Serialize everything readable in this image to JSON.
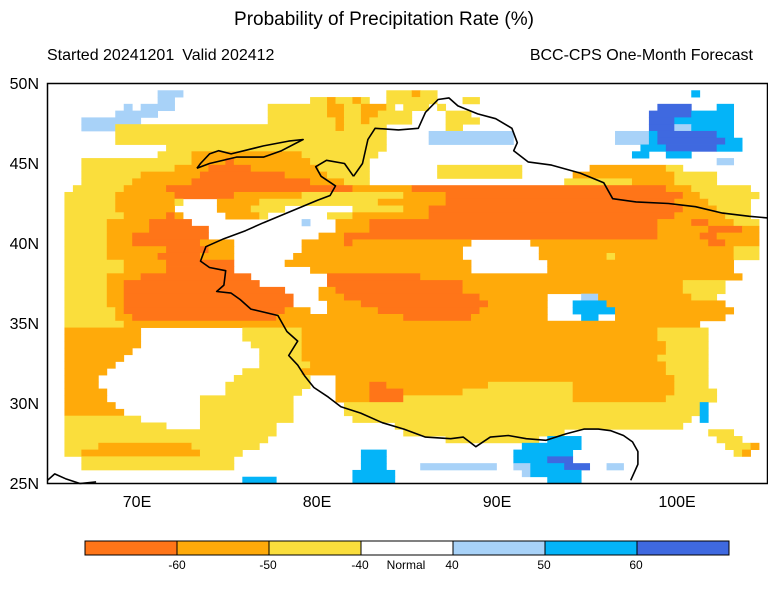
{
  "title": "Probability of Precipitation Rate (%)",
  "started": "Started 20241201",
  "valid": "Valid 202412",
  "source": "BCC-CPS One-Month Forecast",
  "lat_ticks": [
    "50N",
    "45N",
    "40N",
    "35N",
    "30N",
    "25N"
  ],
  "lon_ticks": [
    "70E",
    "80E",
    "90E",
    "100E"
  ],
  "colorbar": {
    "labels": [
      "-60",
      "-50",
      "-40",
      "Normal",
      "40",
      "50",
      "60"
    ],
    "colors": [
      "#ff7518",
      "#ffaa0a",
      "#fade3c",
      "#ffffff",
      "#a8d2f8",
      "#04b4f8",
      "#3f69e0"
    ]
  },
  "map": {
    "lon_range": [
      65,
      105
    ],
    "lat_range": [
      25,
      50
    ],
    "palette": {
      "W": "#ffffff",
      "Y": "#fade3c",
      "O": "#ffaa0a",
      "R": "#ff7518",
      "L": "#a8d2f8",
      "C": "#04b4f8",
      "D": "#3f69e0"
    },
    "grid": [
      "WWWWWWWWWWWWWWWWWWWWWWWWWWWWWWWWWWWWWWWWWWWWWWWWWWWWWWWWWWWWWWWWWWWWWWWWWWWWWWWWW",
      "WWWWWWWWWWWWWLLLWWWWWWWWWWWWWWWWWWWWWWWWYYYOYYWWWWWWWWWWWWWWWWWWWWWWWWWWWWWWCWWWW",
      "WWWWWWWWWWWWWLLWWWWWWWWWWWWWWWWYYOYYOYWWYYYYYYWWWYYWWWWWWWWWWWWWWWWWWWWWWWWWWWWWW",
      "WWWWWWWWWLWLLLLWWWWWWWWWWWYYYYYYYOOYYOOOYWYYYWYWWWWWWWWWWWWWWWWWWWWWWWWWDDDDWWWCCW",
      "WWWWWWWWLLLLLWWWWWWWWWWWWWYYYYYYYOOYYOOYYYYWWWWYYYWWWWWWWWWWWWWWWWWWWWWDDDDDCCCCCW",
      "WWWWLLLLLLLWWWWWWWWWWWWWWWYYYYYYYYOYYOYYYYYWWWWYYYYWWWWWWWWWWWWWWWWWWWWDDDCCCCCCCW",
      "WWWWLLLLYYYYYYYYYYYYYYYYYYYYYYYYYYOYYYYYWWWWWWWYYWWWWWWWWWWWWWWWWWWWWWWDDDLLCCCCCW",
      "WWWWWWWWYYYYYYYYYYYYYYYYYYYYYYYYYYYYYYYYWWWWWLLLLLLLLLLWWWWWWWWWWWWLLLLCDDDDDDDCCW",
      "WWWWWWWWYYYYYYYYYYYYYYYYYYYYYYYYYYYYYYYYWWWWWLLLLLLLLLLWWWWWWWWWWWWLLLLCDDDDDDDDCCW",
      "WWWWWWWWWWWWWWYYYYYYYYYYYYYYYYYYYYYYYYYYWWWWWWWWWWWWWWWWWWWWWWWWWWWWWWCCCDDDDDDCCCW",
      "WWWWWWWWWWWWWYYYYOOOOOOOOOOOOOYYYYYYYYYWWWWWWWWWWWWWWWWWWWWWWWWWWWWWWCCWWCCCWWWWW",
      "WWWWYYYYYYYYYYYYYOOOOROOOOOOOOOYYYYYYYWWWWWWWWWWWWWWWWWWWWWWWWWWWWWWWWWWWWWWWWWLLW",
      "WWWWYYYYYYYYYYYOOOORRRRROOOOOOOOYYYYYYWWWWWWWWYYYYYYYYYYWWWWWWWWOOOOOOOOOYYWWWWWWW",
      "WWWWYYYYYYYOOOOOOORRRRRRRRRROOOOOYYYYYWWWWWWWWYYYYYYYYYYWWWWWWOOOOOOOOOOOOYYYYYWWW",
      "WWWWYYYYYYOOOOOOORRRRRRRRRRRRRROOOOYYYWWWWWWWWWWWWWWWWWWWWWWWYYYYYYYYOOOOOYYYYYWWW",
      "WWWYYYYYYOOOOORRRRRRRRRRRRRRRRRRRRRROOOOOOORRRRRRRRRRRRRRRRRRRRRRRRRRRRRROOOYYYYYYY",
      "WWYYYYYYOOOOOOORRRRRRROOOOOOOOYYYYYYYYYYYYOOOOORRRRRRRRRRRRRRRRRRRRRRRRRRRROOYYYYYYY",
      "WWYYYYYYOOOOOOOYWWWWOOOOOYYYYYYYYYYYYYYOOOOOOOORRRRRRRRRRRRRRRRRRRRRRRRRRROOOOYYYYY",
      "WWYYYYYYOOOOOOOWWWWWOOOOYYYYWWWWWWWWYYYYYYOOORRRRRRRRRRRRRRRRRRRRRRRRRRRRRROOOOYYYY",
      "WWYYYYYYYOOOOOROWWWWWOOOOYWWWWWWWYYYOOOOOOOOORRRRRRRRRRRRRRRRRRRRRRRRRRRRROOOOOOYYY",
      "WWYYYYYOOOOORRRRRWWWWWWWWWWWWWLWWWOOOORRRRRRRRRRRRRRRRRRRRRRRRRRRRRRRRRROOOORROOOYYY",
      "WWYYYYYOOOOORRRRRRRWWWWWWWWWWWWWWWOOOORRRRRRRRRRRRRRRRRRRRRRRRRRRRRRRRRROOOOOORRRROO",
      "WWYYYYYOOORRRRRRRRRWWWWWWWWWWWWWOOORRRRRRRRRRRRRRRRRRRRRRRRRRRRRRRRRRRRROOOOORROOOOO",
      "WWYYYYYOOORRRRRRRROOOOWWWWWWWWOOOOOROOOOOOOOOOOOOOWWWWWWWOOOOOOOOOOOOOOOOOOOOORROOOO",
      "WWYYYYYOOOOOOORRRRROOOWWWWWWWWOOOOOOOOOOOOOOOOOOOWWWWWWWWWOOOOOOOOOOOOOOOOOOOOOOOYYY",
      "WWYYYYYOOOOOORRRRROOOOWWWWWWWOOOOOOOOOOOOOOOOOOOOWWWWWWWWWOOOOOOOOYOOOOOOOOOOOOOOYYY",
      "WWYYYYYYYOOOOORRRRRRRRWWWWWWOOOOOOOOOOOOOOOOOOOOOOWWWWWWWWWOOOOOOOOOOOOOOOOOOOOOOWW",
      "WWYYYYYYYOOOOORRRRRRRRWWWWWWWWWOOOOOOOOOOOOOOOOOOOWWWWWWWWWOOOOOOOOOOOOOOOOOOOOOOWW",
      "WWYYYYYOOOORRRRRRRRRRRRRWWWWWWWWWRRRRRRRRRRROOOOOOOOOOOOOOOOOOOOOOOOOOOOOOOOOOOOOOWW",
      "WWYYYYYOORRRRRRRRRRRRRRRRWWWWWWWWRRRRRRRRRRRRRRRROOOOOOOOOOOOOOOOOOOOOOOOOOYYYYYWWW",
      "WWYYYYYOORRRRRRRRRRRRRRRRRRRWWWWOORRRRRRRRRRRRRRROOOOOOOOOOOOOOOOOOOOOOOOOOYYYYYWWW",
      "WWYYYYYOORRRRRRRRRRRRRRRRRRRRWWWOOORRRRRRRRRRRRRRRROOOOOOOOWWWWLLOOOOOOOOOOOYYYWWWW",
      "WWYYYYYOORRRRRRRRRRRRRRRRRRRRWWWWOOOORRRRRRRRRRRRRRROOOOOOOWWWCCCCOOOOOOOOOOOOOOWWWW",
      "WWYYYYYYORRRRRRRRRRRRRRRRRRROOOWWOOOOOORRRRRRRRRRRROOOOOOOOWWWCCCCCOOOOOOOOOOOOOOWWWW",
      "WWYYYYYYOORRRRRRRRRRRRRRRRROOOOOOOOOOOOOOORRRRRRRROOOOOOOOOWWWWCCWWOOOOOOOOOOOOOWWWWW",
      "WWYYYYYYYOOOOOOOOOOOOOOOOOOOOOOOOOOOOOOOOOOOOOOOOOOOOOOOOOOOOOOOOOOOOOOOOOOOOWWWWW",
      "WWOOOOOOOOOWWWWWWWWWWWWYYYYYYYOOOOOOOOOOOOOOOOOOOOOOOOOOOOOOOOOOOOOOOOOOYYYYYYWWWWW",
      "WWOOOOOOOOOWWWWWWWWWWWWYYYYYYYOOOOOOOOOOOOOOOOOOOOOOOOOOOOOOOOOOOOOOOOOOYYYYYYWWWWW",
      "WWOOOOOOOOOWWWWWWWWWWWWWYYYYYYOOOOOOOOOOOOOOOOOOOOOOOOOOOOOOOOOOOOOOOOOOOYYYYYWWWWW",
      "WWOOOOOOOOWWWWWWWWWWWWWWWYYYYYOOOOOOOOOOOOOOOOOOOOOOOOOOOOOOOOOOOOOOOOOOOYYYYYWWWWW",
      "WWOOOOOOOWWWWWWWWWWWWWWWWYYYYYOOOOOOOOOOOOOOOOOOOOOOOOOOOOOOOOOOOOOOOOOOYYYYYYWWWWW",
      "WWOOOOOOWWWWWWWWWWWWWWWWWYYYYYYOOOOOOOOOOOOOOOOOOOOOOOOOOOOOOOOOOOOOOOOOOYYYYYWWWWW",
      "WWOOOOOWWWWWWWWWWWWWWWWYYYYYYYOOOOOOOOOOOOOOOOOOOOOOOOOOOOOOOOOOOOOOOOOOOYYYYYWWWWW",
      "WWOOOOWWWWWWWWWWWWWWWWYYYYYYYYYWWWOOOOOOOOOOOOOOOOOOOOOOOOOOOOOOOOOOOOOOOOYYYYWWWWW",
      "WWOOOOWWWWWWWWWWWWWWWYYYYYYYYYYWWWOOOORROOOOOOOOOOOOYYYYYYYYYYOOOOOOOOOOOOYYYYWWWWWW",
      "WWOOOOOWWWWWWWWWWWWWWYYYYYYYYYWWWWOOOORRRROOOOOOOYYYYYYYYYYYYYOOOOOOOOOOOOYYYYYWWWWW",
      "WWOOOOOWWWWWWWWWWWYYYYYYYYYYYWWWWWOOOORRRRYYYYYYYYYYYYYYYYYYYYOOOOOOOOOOOYYYYYYWWWWW",
      "WWOOOOOOWWWWWWWWWWYYYYYYYYYYYWWWWWWYYYYYYYYYYYYYYYYYYYYYYYYYYYYYYYYYYYYYYYYYYCWWWWW",
      "WWOOOOOOOWWWWWWWWWYYYYYYYYYYYWWWWWWYYYYYYYYYYYYYYYYYYYYYYYYYYYYYYYYYYYYYYYYYYCWWWWW",
      "WWYYYYYYYYYWWWWWWWYYYYYYYYYYYWWWWWWWYYYYYYYYYYYYYYYYYYYYYYYYYYYYYYYYYYYYYYYYWCWWWWW",
      "WWYYYYYYYYYYYYWWWWYYYYYYYYYWWWWWWWWWWWWWWYYYYYYYYYYYYYYYYYYYYYYYYYYYYYYYYYYWWWWWWWW",
      "WWYYYYYYYYYYYYYYYYYYYYYYYYYWWWWWWWWWWWWWWWYYYYYYYYYYYYYYYYYYYWWWWWWWWWWWWWWWWWYYYWWW",
      "WWYYYYYYYYYYYYYYYYYYYYYYYYWWWWWWWWWWWWWWWWWWWWWYYYYYYYYYYYWCCCCWWWWWWWWWWWWWWWWYYYWW",
      "WWYYYYOOOOOOOOOOOYYYYYYYYWWWWWWWWWWWWWWWWWWWWWWWWWWWWWWWCCCCCCCWWWWWWWWWWWWWWWWWYYYOW",
      "WWYYOOOOOOOOOOOOOOYYYYYWWWWWWWWWWWWWWCCCWWWWWWWWWWWWWWWCCCCCCCWWWWWWWWWWWWWWWWWWWYOW",
      "WWWWYYYYYYYYYYYYYYYYYYWWWWWWWWWWWWWWWCCCWWWWWWWWWWWWWWWCCCCDDDWWWWWWWWWWWWWWWWWWWWWW",
      "WWWWYYYYYYYYYYYYYYYYYYWWWWWWWWWWWWWWWCCCWWWWLLLLLLLLLWWLLCCCCDDDWWLLWWWWWWWWWWWWWWWW",
      "WWWWWWWWWWWWWWWWWWWWWWWWWWWWWWWWWWWWCCCCCWWWWWWWWWWWWWWWLCCCCCCWWWWWWWWWWWWWWWWWWWW",
      "WWWWWWWWWWWWWWWWWWWWWWWCCCCWWWWWWWWWCCCCCWWWWWWWWWWWWWWWWWWCCCCWWWWWWWWWWWWWWWWWWWW"
    ],
    "borders": [
      [
        [
          65.0,
          25.2
        ],
        [
          65.4,
          25.6
        ],
        [
          66.0,
          25.3
        ],
        [
          66.8,
          25.0
        ]
      ],
      [
        [
          66.8,
          25.0
        ],
        [
          67.7,
          25.1
        ]
      ],
      [
        [
          82.0,
          44.2
        ],
        [
          81.5,
          45.0
        ],
        [
          80.5,
          45.2
        ],
        [
          79.9,
          44.8
        ],
        [
          80.2,
          44.2
        ],
        [
          81.0,
          43.6
        ],
        [
          80.7,
          43.0
        ],
        [
          80.0,
          42.7
        ],
        [
          78.5,
          42.0
        ],
        [
          77.0,
          41.3
        ],
        [
          76.0,
          40.8
        ],
        [
          74.8,
          40.3
        ],
        [
          73.8,
          39.8
        ],
        [
          73.5,
          38.9
        ],
        [
          74.0,
          38.5
        ],
        [
          74.9,
          38.3
        ],
        [
          74.8,
          37.4
        ],
        [
          74.4,
          37.0
        ],
        [
          75.2,
          36.9
        ],
        [
          75.7,
          36.5
        ],
        [
          76.3,
          35.9
        ],
        [
          77.8,
          35.5
        ],
        [
          78.3,
          34.5
        ],
        [
          78.9,
          33.9
        ],
        [
          78.4,
          33.0
        ],
        [
          78.9,
          32.4
        ],
        [
          79.3,
          31.7
        ],
        [
          79.8,
          31.0
        ],
        [
          80.6,
          30.4
        ],
        [
          81.3,
          29.8
        ],
        [
          82.4,
          29.4
        ],
        [
          83.6,
          28.8
        ],
        [
          84.8,
          28.4
        ],
        [
          86.0,
          27.9
        ],
        [
          87.4,
          27.8
        ],
        [
          88.1,
          27.9
        ],
        [
          88.8,
          27.3
        ],
        [
          89.6,
          27.9
        ],
        [
          90.6,
          28.0
        ],
        [
          91.6,
          27.8
        ],
        [
          92.7,
          27.7
        ],
        [
          93.8,
          28.1
        ],
        [
          94.8,
          28.4
        ],
        [
          95.6,
          28.4
        ],
        [
          96.3,
          28.3
        ],
        [
          97.0,
          28.0
        ],
        [
          97.5,
          27.6
        ],
        [
          97.8,
          27.0
        ],
        [
          97.8,
          26.2
        ],
        [
          97.4,
          25.2
        ]
      ],
      [
        [
          82.0,
          44.2
        ],
        [
          82.5,
          45.0
        ],
        [
          82.8,
          46.5
        ],
        [
          83.2,
          47.2
        ],
        [
          84.5,
          47.1
        ],
        [
          85.6,
          47.2
        ],
        [
          86.0,
          48.2
        ],
        [
          86.7,
          49.0
        ],
        [
          87.3,
          49.1
        ],
        [
          87.8,
          48.6
        ],
        [
          88.9,
          48.1
        ],
        [
          89.9,
          47.8
        ],
        [
          90.8,
          47.2
        ],
        [
          91.1,
          46.3
        ],
        [
          90.9,
          45.8
        ],
        [
          91.7,
          45.1
        ],
        [
          93.0,
          44.9
        ],
        [
          94.6,
          44.4
        ],
        [
          95.9,
          43.8
        ],
        [
          96.4,
          42.8
        ],
        [
          97.7,
          42.6
        ],
        [
          99.5,
          42.5
        ],
        [
          101.0,
          42.3
        ],
        [
          102.5,
          41.9
        ],
        [
          104.0,
          41.7
        ],
        [
          105.0,
          41.6
        ]
      ],
      [
        [
          73.3,
          44.7
        ],
        [
          74.0,
          45.0
        ],
        [
          75.5,
          45.4
        ],
        [
          77.0,
          45.4
        ],
        [
          78.0,
          45.8
        ],
        [
          79.2,
          46.5
        ],
        [
          78.4,
          46.4
        ],
        [
          77.0,
          46.1
        ],
        [
          75.2,
          45.6
        ],
        [
          74.5,
          45.8
        ],
        [
          74.0,
          45.6
        ],
        [
          73.5,
          45.0
        ],
        [
          73.3,
          44.7
        ]
      ]
    ]
  }
}
